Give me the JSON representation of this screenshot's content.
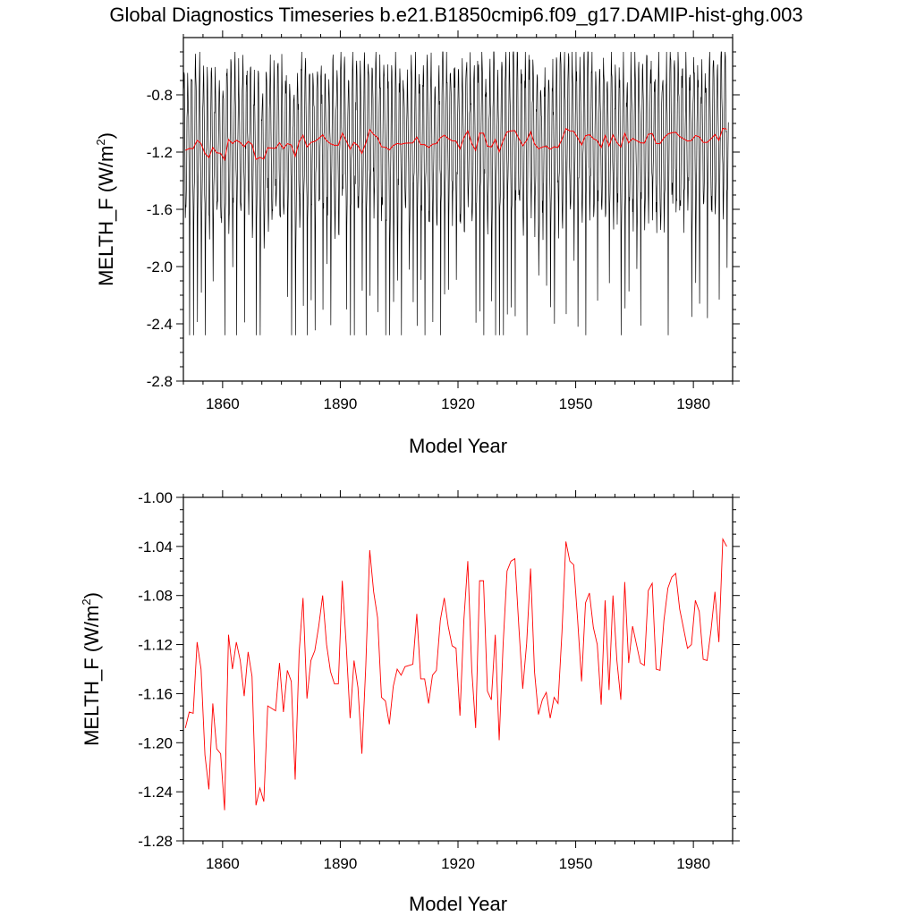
{
  "title": "Global Diagnostics Timeseries b.e21.B1850cmip6.f09_g17.DAMIP-hist-ghg.003",
  "chart_data": [
    {
      "type": "line",
      "xlabel": "Model Year",
      "ylabel_main": "MELTH_F (W/m",
      "ylabel_sup": "2",
      "ylabel_close": ")",
      "xlim": [
        1850,
        1990
      ],
      "ylim": [
        -2.8,
        -0.4
      ],
      "x_ticks": [
        1860,
        1890,
        1920,
        1950,
        1980
      ],
      "x_tick_labels": [
        "1860",
        "1890",
        "1920",
        "1950",
        "1980"
      ],
      "y_ticks": [
        -2.8,
        -2.4,
        -2.0,
        -1.6,
        -1.2,
        -0.8
      ],
      "y_tick_labels": [
        "-2.8",
        "-2.4",
        "-2.0",
        "-1.6",
        "-1.2",
        "-0.8"
      ],
      "grid": false,
      "series": [
        {
          "role": "monthly",
          "color": "#000000",
          "monthly_range_min": -2.48,
          "monthly_range_max": -0.5
        },
        {
          "role": "annual_mean",
          "color": "#ff0000"
        }
      ]
    },
    {
      "type": "line",
      "xlabel": "Model Year",
      "ylabel_main": "MELTH_F (W/m",
      "ylabel_sup": "2",
      "ylabel_close": ")",
      "xlim": [
        1850,
        1990
      ],
      "ylim": [
        -1.28,
        -1.0
      ],
      "x_ticks": [
        1860,
        1890,
        1920,
        1950,
        1980
      ],
      "x_tick_labels": [
        "1860",
        "1890",
        "1920",
        "1950",
        "1980"
      ],
      "y_ticks": [
        -1.28,
        -1.24,
        -1.2,
        -1.16,
        -1.12,
        -1.08,
        -1.04,
        -1.0
      ],
      "y_tick_labels": [
        "-1.28",
        "-1.24",
        "-1.20",
        "-1.16",
        "-1.12",
        "-1.08",
        "-1.04",
        "-1.00"
      ],
      "grid": false,
      "series": [
        {
          "role": "annual_mean",
          "color": "#ff0000",
          "x_start": 1850,
          "x_step": 1,
          "values": [
            -1.188,
            -1.175,
            -1.176,
            -1.118,
            -1.14,
            -1.21,
            -1.238,
            -1.168,
            -1.205,
            -1.209,
            -1.255,
            -1.112,
            -1.14,
            -1.118,
            -1.133,
            -1.162,
            -1.126,
            -1.146,
            -1.251,
            -1.237,
            -1.248,
            -1.17,
            -1.172,
            -1.174,
            -1.135,
            -1.175,
            -1.141,
            -1.15,
            -1.23,
            -1.127,
            -1.082,
            -1.164,
            -1.133,
            -1.125,
            -1.105,
            -1.08,
            -1.12,
            -1.142,
            -1.152,
            -1.152,
            -1.068,
            -1.12,
            -1.18,
            -1.133,
            -1.155,
            -1.209,
            -1.137,
            -1.043,
            -1.077,
            -1.098,
            -1.163,
            -1.166,
            -1.185,
            -1.154,
            -1.14,
            -1.145,
            -1.138,
            -1.137,
            -1.136,
            -1.095,
            -1.148,
            -1.148,
            -1.168,
            -1.145,
            -1.141,
            -1.1,
            -1.082,
            -1.105,
            -1.121,
            -1.123,
            -1.178,
            -1.1,
            -1.052,
            -1.14,
            -1.188,
            -1.068,
            -1.068,
            -1.158,
            -1.165,
            -1.112,
            -1.198,
            -1.12,
            -1.06,
            -1.052,
            -1.05,
            -1.105,
            -1.156,
            -1.119,
            -1.058,
            -1.142,
            -1.177,
            -1.165,
            -1.159,
            -1.18,
            -1.163,
            -1.168,
            -1.11,
            -1.036,
            -1.052,
            -1.055,
            -1.1,
            -1.15,
            -1.086,
            -1.078,
            -1.106,
            -1.12,
            -1.169,
            -1.084,
            -1.157,
            -1.08,
            -1.133,
            -1.165,
            -1.069,
            -1.135,
            -1.105,
            -1.12,
            -1.135,
            -1.137,
            -1.076,
            -1.07,
            -1.14,
            -1.141,
            -1.1,
            -1.074,
            -1.065,
            -1.062,
            -1.091,
            -1.107,
            -1.123,
            -1.12,
            -1.084,
            -1.093,
            -1.132,
            -1.133,
            -1.108,
            -1.077,
            -1.118,
            -1.034,
            -1.04
          ]
        }
      ]
    }
  ]
}
